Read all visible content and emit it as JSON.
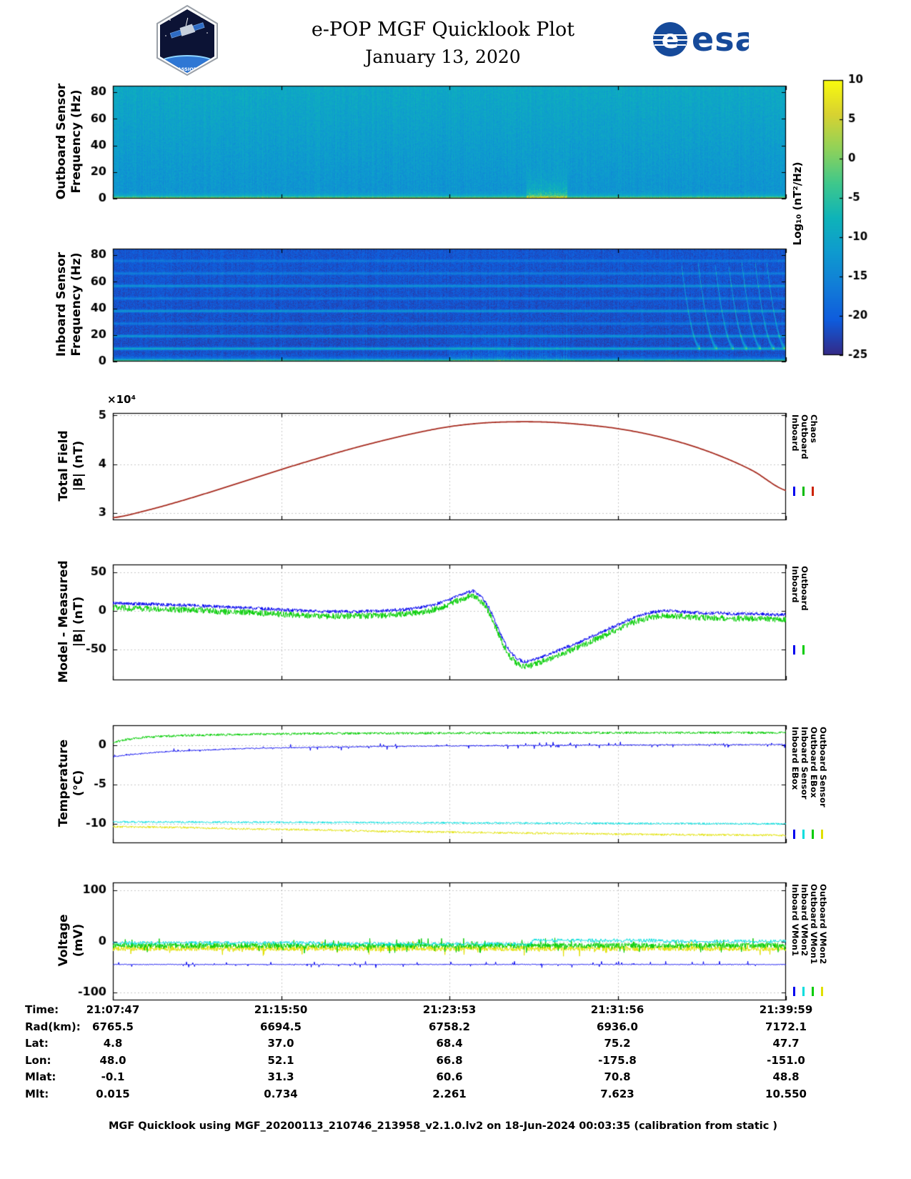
{
  "header": {
    "title": "e-POP MGF Quicklook Plot",
    "date": "January 13, 2020",
    "cassiope_label": "CASSIOPE",
    "esa_logo_text": "esa"
  },
  "colorbar": {
    "label": "Log₁₀ (nT²/Hz)",
    "min": -25,
    "max": 10,
    "ticks": [
      10,
      5,
      0,
      -5,
      -10,
      -15,
      -20,
      -25
    ]
  },
  "chart_data": [
    {
      "type": "heatmap",
      "id": "outboard-spectrogram",
      "ylabel_line1": "Outboard Sensor",
      "ylabel_line2": "Frequency (Hz)",
      "ylim": [
        0,
        85
      ],
      "yticks": [
        0,
        20,
        40,
        60,
        80
      ],
      "value_units": "Log₁₀ (nT²/Hz)",
      "value_range": [
        -25,
        10
      ],
      "model": {
        "base_level": -13,
        "freq_gradient": 3.5,
        "noise": 1.6,
        "column_noise": 0.9,
        "low_freq_band": {
          "gain": 19,
          "efold_hz": 1.3
        },
        "burst": {
          "x_start": 0.615,
          "x_end": 0.675,
          "gain": 9,
          "efold_hz": 9
        }
      }
    },
    {
      "type": "heatmap",
      "id": "inboard-spectrogram",
      "ylabel_line1": "Inboard Sensor",
      "ylabel_line2": "Frequency (Hz)",
      "ylim": [
        0,
        85
      ],
      "yticks": [
        0,
        20,
        40,
        60,
        80
      ],
      "value_units": "Log₁₀ (nT²/Hz)",
      "value_range": [
        -25,
        10
      ],
      "model": {
        "base_level": -22,
        "freq_gradient": 1,
        "noise": 1.6,
        "column_noise": 0.7,
        "low_freq_band": {
          "gain": 30,
          "efold_hz": 1.2
        },
        "interference_lines": [
          {
            "hz": 9.5,
            "boost": 12
          },
          {
            "hz": 19,
            "boost": 9
          },
          {
            "hz": 28.5,
            "boost": 5
          },
          {
            "hz": 38,
            "boost": 9
          },
          {
            "hz": 47.5,
            "boost": 5
          },
          {
            "hz": 57,
            "boost": 8
          },
          {
            "hz": 66.5,
            "boost": 5
          },
          {
            "hz": 76,
            "boost": 4
          }
        ],
        "disturbed_region": {
          "x_start": 0.5,
          "x_end": 0.68,
          "max_hz": 35,
          "boost": 8
        },
        "falling_tones": {
          "x_starts": [
            0.845,
            0.87,
            0.895,
            0.915,
            0.935,
            0.955,
            0.972
          ],
          "dx": 0.028,
          "f_top": 74,
          "f_bottom": 10,
          "boost": 10
        }
      }
    },
    {
      "type": "line",
      "id": "total-field",
      "ylabel_line1": "Total Field",
      "ylabel_line2": "|B| (nT)",
      "multiplier_label": "×10⁴",
      "ylim": [
        28500,
        50500
      ],
      "yticks": [
        30000,
        40000,
        50000
      ],
      "ytick_labels": [
        "3",
        "4",
        "5"
      ],
      "legend": [
        {
          "label": "Inboard",
          "color": "#0000ee"
        },
        {
          "label": "Outboard",
          "color": "#00bb00"
        },
        {
          "label": "Chaos",
          "color": "#cc2200"
        }
      ],
      "series": [
        {
          "name": "|B| Inboard/Outboard/Chaos (overlapping)",
          "color": "#a62b1f",
          "width": 1.8,
          "smooth": true,
          "n": 600,
          "points": [
            [
              0,
              29000
            ],
            [
              0.05,
              30500
            ],
            [
              0.1,
              32400
            ],
            [
              0.15,
              34500
            ],
            [
              0.2,
              36700
            ],
            [
              0.25,
              38900
            ],
            [
              0.3,
              41000
            ],
            [
              0.35,
              43000
            ],
            [
              0.4,
              44800
            ],
            [
              0.45,
              46400
            ],
            [
              0.5,
              47700
            ],
            [
              0.55,
              48450
            ],
            [
              0.6,
              48700
            ],
            [
              0.65,
              48600
            ],
            [
              0.7,
              48100
            ],
            [
              0.75,
              47300
            ],
            [
              0.8,
              46000
            ],
            [
              0.85,
              44200
            ],
            [
              0.9,
              41800
            ],
            [
              0.95,
              38700
            ],
            [
              1,
              34600
            ]
          ]
        }
      ]
    },
    {
      "type": "line",
      "id": "model-minus-measured",
      "ylabel_line1": "Model - Measured",
      "ylabel_line2": "|B| (nT)",
      "ylim": [
        -90,
        60
      ],
      "yticks": [
        50,
        0,
        -50
      ],
      "legend": [
        {
          "label": "Inboard",
          "color": "#0000ee"
        },
        {
          "label": "Outboard",
          "color": "#00cc00"
        }
      ],
      "trend": [
        [
          0,
          8
        ],
        [
          0.04,
          7
        ],
        [
          0.08,
          6
        ],
        [
          0.12,
          5
        ],
        [
          0.16,
          3
        ],
        [
          0.2,
          2
        ],
        [
          0.24,
          0
        ],
        [
          0.28,
          -2
        ],
        [
          0.32,
          -3
        ],
        [
          0.36,
          -3
        ],
        [
          0.4,
          -2
        ],
        [
          0.44,
          0
        ],
        [
          0.47,
          4
        ],
        [
          0.5,
          12
        ],
        [
          0.52,
          20
        ],
        [
          0.535,
          24
        ],
        [
          0.55,
          14
        ],
        [
          0.56,
          0
        ],
        [
          0.57,
          -20
        ],
        [
          0.58,
          -40
        ],
        [
          0.59,
          -55
        ],
        [
          0.6,
          -64
        ],
        [
          0.61,
          -68
        ],
        [
          0.62,
          -67
        ],
        [
          0.64,
          -61
        ],
        [
          0.66,
          -54
        ],
        [
          0.68,
          -47
        ],
        [
          0.7,
          -40
        ],
        [
          0.72,
          -32
        ],
        [
          0.74,
          -24
        ],
        [
          0.76,
          -16
        ],
        [
          0.78,
          -9
        ],
        [
          0.8,
          -4
        ],
        [
          0.82,
          -2
        ],
        [
          0.84,
          -3
        ],
        [
          0.86,
          -4
        ],
        [
          0.88,
          -5
        ],
        [
          0.9,
          -5
        ],
        [
          0.92,
          -6
        ],
        [
          0.94,
          -6
        ],
        [
          0.96,
          -6
        ],
        [
          0.98,
          -7
        ],
        [
          1,
          -7
        ]
      ],
      "series": [
        {
          "name": "Outboard",
          "color": "#00cc00",
          "use_trend": true,
          "offset": -4,
          "noise": 4,
          "n": 1700,
          "width": 1
        },
        {
          "name": "Inboard",
          "color": "#0000ee",
          "use_trend": true,
          "offset": 2,
          "noise": 2.2,
          "n": 1700,
          "width": 1
        }
      ]
    },
    {
      "type": "line",
      "id": "temperature",
      "ylabel_line1": "Temperature",
      "ylabel_line2": "(°C)",
      "ylim": [
        -12.5,
        2.5
      ],
      "yticks": [
        0,
        -5,
        -10
      ],
      "legend": [
        {
          "label": "Inboard EBox",
          "color": "#0000ee"
        },
        {
          "label": "Inboard Sensor",
          "color": "#00dddd"
        },
        {
          "label": "Outboard EBox",
          "color": "#00cc00"
        },
        {
          "label": "Outboard Sensor",
          "color": "#e0e000"
        }
      ],
      "series": [
        {
          "name": "Outboard Sensor",
          "color": "#e0e000",
          "noise": 0.13,
          "n": 1500,
          "width": 1,
          "points": [
            [
              0,
              -10.4
            ],
            [
              0.1,
              -10.5
            ],
            [
              0.2,
              -10.7
            ],
            [
              0.3,
              -10.8
            ],
            [
              0.4,
              -11
            ],
            [
              0.5,
              -11.1
            ],
            [
              0.6,
              -11.2
            ],
            [
              0.7,
              -11.3
            ],
            [
              0.8,
              -11.4
            ],
            [
              0.9,
              -11.45
            ],
            [
              1,
              -11.5
            ]
          ]
        },
        {
          "name": "Inboard Sensor",
          "color": "#00dddd",
          "noise": 0.12,
          "n": 1500,
          "width": 1,
          "points": [
            [
              0,
              -9.8
            ],
            [
              0.3,
              -9.85
            ],
            [
              0.6,
              -9.95
            ],
            [
              1,
              -10.05
            ]
          ]
        },
        {
          "name": "Outboard EBox",
          "color": "#00cc00",
          "noise": 0.15,
          "n": 1500,
          "width": 1,
          "points": [
            [
              0,
              0.3
            ],
            [
              0.02,
              0.7
            ],
            [
              0.05,
              1
            ],
            [
              0.1,
              1.2
            ],
            [
              0.2,
              1.35
            ],
            [
              0.3,
              1.45
            ],
            [
              0.5,
              1.5
            ],
            [
              0.7,
              1.55
            ],
            [
              1,
              1.55
            ]
          ]
        },
        {
          "name": "Inboard EBox",
          "color": "#0000ee",
          "noise": 0.07,
          "n": 1500,
          "width": 1,
          "spiky": true,
          "spike_scale": 6,
          "points": [
            [
              0,
              -1.5
            ],
            [
              0.03,
              -1.2
            ],
            [
              0.07,
              -0.9
            ],
            [
              0.12,
              -0.7
            ],
            [
              0.2,
              -0.45
            ],
            [
              0.3,
              -0.3
            ],
            [
              0.4,
              -0.2
            ],
            [
              0.5,
              -0.12
            ],
            [
              0.65,
              -0.05
            ],
            [
              0.8,
              0
            ],
            [
              1,
              0.05
            ]
          ]
        }
      ]
    },
    {
      "type": "line",
      "id": "voltage",
      "ylabel_line1": "Voltage",
      "ylabel_line2": "(mV)",
      "ylim": [
        -115,
        115
      ],
      "yticks": [
        100,
        0,
        -100
      ],
      "legend": [
        {
          "label": "Inboard VMon1",
          "color": "#0000ee"
        },
        {
          "label": "Inboard VMon2",
          "color": "#00dddd"
        },
        {
          "label": "Outboard VMon1",
          "color": "#00cc00"
        },
        {
          "label": "Outboard VMon2",
          "color": "#e0e000"
        }
      ],
      "series": [
        {
          "name": "Outboard VMon2",
          "color": "#e0e000",
          "noise": 5,
          "spiky": true,
          "spike_scale": 3,
          "n": 1800,
          "width": 1,
          "points": [
            [
              0,
              -14
            ],
            [
              1,
              -14
            ]
          ]
        },
        {
          "name": "Outboard VMon1",
          "color": "#00cc00",
          "noise": 5,
          "spiky": true,
          "spike_scale": 3,
          "n": 1800,
          "width": 1,
          "points": [
            [
              0,
              -8
            ],
            [
              1,
              -8
            ]
          ]
        },
        {
          "name": "Inboard VMon2",
          "color": "#00dddd",
          "noise": 2.5,
          "quantize": 3,
          "n": 1200,
          "width": 1,
          "points": [
            [
              0,
              -3
            ],
            [
              0.3,
              -3
            ],
            [
              0.31,
              -5
            ],
            [
              0.62,
              -5
            ],
            [
              0.625,
              2
            ],
            [
              0.8,
              2
            ],
            [
              0.82,
              0
            ],
            [
              1,
              0
            ]
          ]
        },
        {
          "name": "Inboard VMon1",
          "color": "#0000ee",
          "noise": 0.8,
          "spiky": true,
          "spike_scale": 8,
          "n": 1500,
          "width": 1,
          "points": [
            [
              0,
              -45
            ],
            [
              1,
              -45
            ]
          ]
        }
      ]
    }
  ],
  "ephemeris": {
    "rows": [
      {
        "label": "Time:",
        "values": [
          "21:07:47",
          "21:15:50",
          "21:23:53",
          "21:31:56",
          "21:39:59"
        ]
      },
      {
        "label": "Rad(km):",
        "values": [
          "6765.5",
          "6694.5",
          "6758.2",
          "6936.0",
          "7172.1"
        ]
      },
      {
        "label": "Lat:",
        "values": [
          "4.8",
          "37.0",
          "68.4",
          "75.2",
          "47.7"
        ]
      },
      {
        "label": "Lon:",
        "values": [
          "48.0",
          "52.1",
          "66.8",
          "-175.8",
          "-151.0"
        ]
      },
      {
        "label": "Mlat:",
        "values": [
          "-0.1",
          "31.3",
          "60.6",
          "70.8",
          "48.8"
        ]
      },
      {
        "label": "Mlt:",
        "values": [
          "0.015",
          "0.734",
          "2.261",
          "7.623",
          "10.550"
        ]
      }
    ]
  },
  "footer": "MGF Quicklook using MGF_20200113_210746_213958_v2.1.0.lv2 on 18-Jun-2024 00:03:35 (calibration from static )"
}
